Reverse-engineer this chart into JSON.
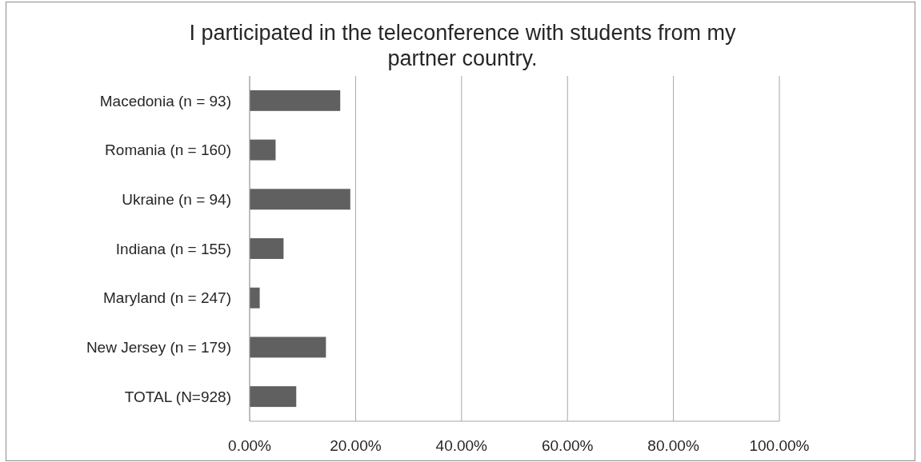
{
  "chart_data": {
    "type": "bar",
    "orientation": "horizontal",
    "title": "I participated in the teleconference with students from my partner country.",
    "categories": [
      "Macedonia (n = 93)",
      "Romania (n = 160)",
      "Ukraine (n = 94)",
      "Indiana (n = 155)",
      "Maryland (n = 247)",
      "New Jersey (n = 179)",
      "TOTAL (N=928)"
    ],
    "values": [
      17.1,
      4.9,
      19.0,
      6.4,
      1.9,
      14.4,
      8.8
    ],
    "color": "#606060",
    "xlim": [
      0,
      100
    ],
    "xticks": [
      {
        "value": 0,
        "label": "0.00%"
      },
      {
        "value": 20,
        "label": "20.00%"
      },
      {
        "value": 40,
        "label": "40.00%"
      },
      {
        "value": 60,
        "label": "60.00%"
      },
      {
        "value": 80,
        "label": "80.00%"
      },
      {
        "value": 100,
        "label": "100.00%"
      }
    ],
    "grid": "x"
  }
}
